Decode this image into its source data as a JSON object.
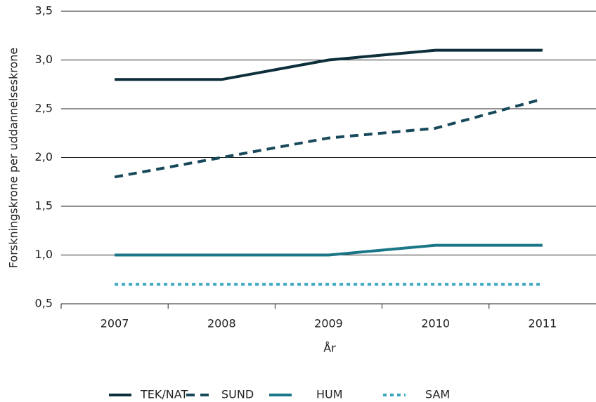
{
  "chart_data": {
    "type": "line",
    "categories": [
      "2007",
      "2008",
      "2009",
      "2010",
      "2011"
    ],
    "series": [
      {
        "name": "TEK/NAT",
        "color": "#0d2f3b",
        "dash": "solid",
        "values": [
          2.8,
          2.8,
          3.0,
          3.1,
          3.1
        ]
      },
      {
        "name": "SUND",
        "color": "#17495a",
        "dash": "dashed",
        "values": [
          1.8,
          2.0,
          2.2,
          2.3,
          2.6
        ]
      },
      {
        "name": "HUM",
        "color": "#1b7787",
        "dash": "solid",
        "values": [
          1.0,
          1.0,
          1.0,
          1.1,
          1.1
        ]
      },
      {
        "name": "SAM",
        "color": "#3aa7bf",
        "dash": "dotted",
        "values": [
          0.7,
          0.7,
          0.7,
          0.7,
          0.7
        ]
      }
    ],
    "ylabel": "Forskningskrone per uddannelseskrone",
    "xlabel": "År",
    "ylim": [
      0.5,
      3.5
    ],
    "yticks": [
      {
        "value": 0.5,
        "label": "0,5"
      },
      {
        "value": 1.0,
        "label": "1,0"
      },
      {
        "value": 1.5,
        "label": "1,5"
      },
      {
        "value": 2.0,
        "label": "2,0"
      },
      {
        "value": 2.5,
        "label": "2,5"
      },
      {
        "value": 3.0,
        "label": "3,0"
      },
      {
        "value": 3.5,
        "label": "3,5"
      }
    ],
    "grid": true,
    "legend": "bottom"
  }
}
